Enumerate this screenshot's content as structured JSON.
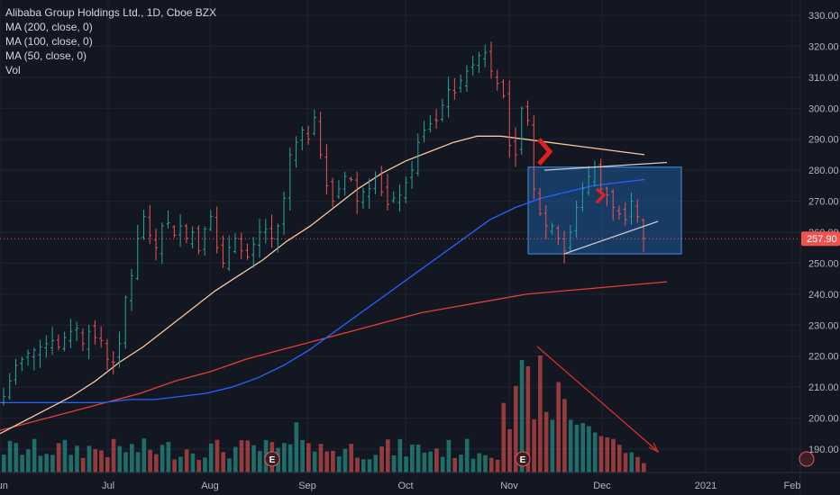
{
  "header": {
    "symbol_line": "Alibaba Group Holdings Ltd., 1D, Cboe BZX",
    "indicators": [
      "MA (200, close, 0)",
      "MA (100, close, 0)",
      "MA (50, close, 0)",
      "Vol"
    ]
  },
  "colors": {
    "background": "#131722",
    "up": "#26a69a",
    "down": "#ef5350",
    "ma50": "#f7c9a0",
    "ma100": "#2962ff",
    "ma200": "#e0403a",
    "box": "#1e5a9a",
    "current_price": "#ef5350"
  },
  "chart_data": {
    "type": "candlestick",
    "title": "Alibaba Group Holdings Ltd., 1D, Cboe BZX",
    "y_axis": {
      "ylim": [
        182,
        335
      ],
      "ticks": [
        "330.00",
        "320.00",
        "310.00",
        "300.00",
        "290.00",
        "280.00",
        "270.00",
        "260.00",
        "250.00",
        "240.00",
        "230.00",
        "220.00",
        "210.00",
        "200.00",
        "190.00"
      ],
      "tick_values": [
        330,
        320,
        310,
        300,
        290,
        280,
        270,
        260,
        250,
        240,
        230,
        220,
        210,
        200,
        190
      ]
    },
    "x_axis": {
      "labels": [
        "Jun",
        "Jul",
        "Aug",
        "Sep",
        "Oct",
        "Nov",
        "Dec",
        "2021",
        "Feb"
      ]
    },
    "current_price": {
      "value": 257.9,
      "label": "257.90"
    },
    "earnings_markers": [
      {
        "label": "E",
        "month": "Aug"
      },
      {
        "label": "E",
        "month": "Nov"
      }
    ],
    "series": [
      {
        "name": "MA (50, close, 0)",
        "values": [
          195,
          199,
          203,
          207,
          212,
          218,
          223,
          229,
          235,
          241,
          246,
          251,
          257,
          262,
          268,
          274,
          279,
          283,
          286,
          289,
          291,
          291,
          290,
          289,
          288,
          287,
          286,
          285
        ]
      },
      {
        "name": "MA (100, close, 0)",
        "values": [
          205,
          205,
          205,
          205,
          205,
          206,
          206,
          207,
          208,
          210,
          213,
          217,
          222,
          228,
          234,
          240,
          246,
          252,
          258,
          264,
          268,
          271,
          273,
          275,
          276,
          277
        ]
      },
      {
        "name": "MA (200, close, 0)",
        "values": [
          196,
          199,
          202,
          205,
          208,
          212,
          215,
          219,
          222,
          225,
          228,
          231,
          234,
          236,
          238,
          240,
          241,
          242,
          243,
          244
        ]
      }
    ],
    "ohlc_close": [
      207,
      212,
      217,
      219,
      221,
      222,
      223,
      224,
      225,
      223,
      226,
      228,
      229,
      224,
      228,
      226,
      225,
      219,
      218,
      224,
      239,
      246,
      258,
      265,
      259,
      255,
      262,
      263,
      259,
      262,
      258,
      260,
      254,
      261,
      265,
      255,
      250,
      255,
      258,
      254,
      252,
      256,
      260,
      261,
      258,
      262,
      271,
      285,
      289,
      293,
      290,
      297,
      285,
      275,
      270,
      274,
      278,
      277,
      270,
      273,
      274,
      278,
      273,
      269,
      271,
      272,
      276,
      280,
      289,
      293,
      295,
      296,
      301,
      306,
      305,
      309,
      312,
      314,
      317,
      318,
      312,
      308,
      304,
      288,
      285,
      300,
      296,
      274,
      266,
      262,
      262,
      258,
      254,
      260,
      268,
      274,
      278,
      281,
      274,
      272,
      268,
      266,
      264,
      270,
      265,
      258
    ]
  },
  "selection_box": {
    "price_high": 281,
    "price_low": 253
  },
  "annotations": [
    "trend-arrow-down-volume",
    "wedge-trendlines",
    "red-chevron-markers"
  ]
}
